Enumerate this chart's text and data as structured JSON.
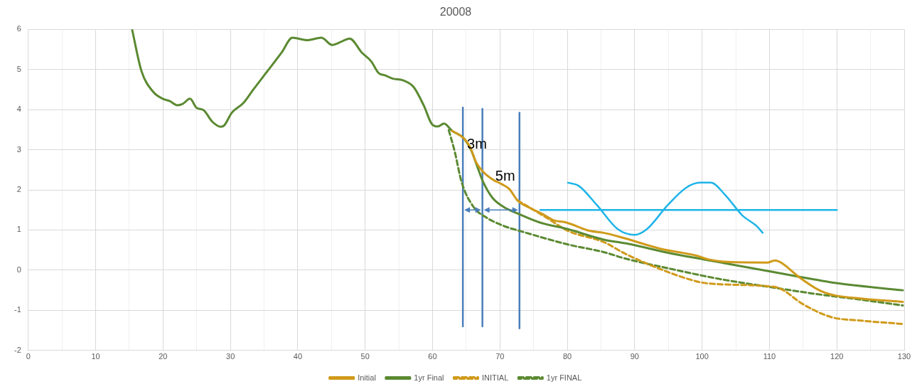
{
  "chart_data": {
    "type": "line",
    "title": "20008",
    "xlim": [
      0,
      130
    ],
    "ylim": [
      -2,
      6
    ],
    "xticks": [
      0,
      {
        "value": 5,
        "label": null
      },
      10,
      {
        "value": 15,
        "label": null
      },
      20,
      {
        "value": 25,
        "label": null
      },
      30,
      {
        "value": 35,
        "label": null
      },
      40,
      {
        "value": 45,
        "label": null
      },
      50,
      {
        "value": 55,
        "label": null
      },
      60,
      {
        "value": 65,
        "label": null
      },
      70,
      {
        "value": 75,
        "label": null
      },
      80,
      {
        "value": 85,
        "label": null
      },
      90,
      {
        "value": 95,
        "label": null
      },
      100,
      {
        "value": 105,
        "label": null
      },
      110,
      {
        "value": 115,
        "label": null
      },
      120,
      {
        "value": 125,
        "label": null
      },
      130
    ],
    "yticks": [
      -2,
      -1,
      0,
      1,
      2,
      3,
      4,
      5,
      6
    ],
    "grid": true,
    "legend": "bottom",
    "marker": "none",
    "annotations": [
      "3m",
      "5m"
    ],
    "series": [
      {
        "name": "Initial",
        "color": "#d09a1a",
        "line_style": "solid",
        "x": [
          62.9,
          64.6,
          65.6,
          66.4,
          67.5,
          68.9,
          70.3,
          71.4,
          72.6,
          74.2,
          76.3,
          78,
          79.8,
          83.3,
          85.4,
          88.6,
          93.9,
          99.2,
          100.9,
          104.4,
          109.7,
          110.8,
          111.8,
          114.3,
          117.4,
          119.5,
          123.8,
          129.8
        ],
        "values": [
          3.47,
          3.29,
          3.06,
          2.71,
          2.45,
          2.26,
          2.14,
          2.02,
          1.74,
          1.57,
          1.4,
          1.24,
          1.19,
          0.98,
          0.93,
          0.79,
          0.53,
          0.36,
          0.27,
          0.2,
          0.19,
          0.24,
          0.18,
          -0.16,
          -0.5,
          -0.62,
          -0.71,
          -0.79
        ]
      },
      {
        "name": "1yr Final",
        "color": "#5b8a32",
        "line_style": "solid",
        "x": [
          15.4,
          16.8,
          18.55,
          19.96,
          21,
          22.1,
          22.9,
          24,
          25,
          26,
          27.3,
          28.6,
          29.1,
          30.2,
          31.9,
          33.4,
          35.5,
          37.6,
          39.2,
          41.4,
          43.5,
          45.1,
          46.7,
          47.7,
          49.5,
          50.9,
          52,
          53,
          54.1,
          55.6,
          57.2,
          58.7,
          59.9,
          60.8,
          61.7,
          62.9,
          64.6,
          65.7,
          66.6,
          67.5,
          68.9,
          70.6,
          72.8,
          75.9,
          80.1,
          85.4,
          88.6,
          95.6,
          100.2,
          109.7,
          114.3,
          120.3,
          129.8
        ],
        "values": [
          6,
          4.96,
          4.44,
          4.27,
          4.21,
          4.11,
          4.14,
          4.27,
          4.04,
          3.99,
          3.7,
          3.57,
          3.61,
          3.92,
          4.16,
          4.5,
          4.96,
          5.42,
          5.79,
          5.73,
          5.79,
          5.61,
          5.71,
          5.77,
          5.42,
          5.2,
          4.91,
          4.85,
          4.77,
          4.73,
          4.56,
          4.1,
          3.64,
          3.58,
          3.65,
          3.47,
          3.29,
          3,
          2.6,
          2.2,
          1.8,
          1.57,
          1.4,
          1.19,
          1.02,
          0.76,
          0.67,
          0.41,
          0.27,
          -0.02,
          -0.16,
          -0.33,
          -0.5
        ]
      },
      {
        "name": "INITIAL",
        "color": "#d09a1a",
        "line_style": "dashed",
        "x": [
          72.6,
          76.7,
          80.1,
          85.4,
          88.6,
          93.9,
          99.2,
          100.9,
          109.7,
          111.5,
          115,
          119.2,
          123.8,
          129.8
        ],
        "values": [
          1.74,
          1.33,
          0.98,
          0.7,
          0.41,
          0.02,
          -0.28,
          -0.33,
          -0.4,
          -0.45,
          -0.85,
          -1.17,
          -1.26,
          -1.34
        ]
      },
      {
        "name": "1yr FINAL",
        "color": "#5b8a32",
        "line_style": "dashed",
        "x": [
          62.4,
          63.3,
          64.3,
          66.1,
          67.8,
          70.6,
          73.1,
          80.1,
          85.4,
          88.6,
          95.7,
          102.6,
          109.7,
          116.8,
          123.8,
          129.8
        ],
        "values": [
          3.49,
          2.95,
          2.2,
          1.57,
          1.33,
          1.1,
          0.97,
          0.64,
          0.45,
          0.29,
          0.02,
          -0.22,
          -0.41,
          -0.59,
          -0.74,
          -0.88
        ]
      },
      {
        "color": "#1eb4e8",
        "line_style": "solid",
        "x": [
          80.1,
          81.7,
          84.4,
          87.5,
          90,
          91.8,
          94.9,
          97.6,
          99.7,
          101.3,
          103.4,
          106,
          108.1,
          109
        ],
        "values": [
          2.18,
          2.1,
          1.62,
          1.02,
          0.88,
          1.02,
          1.62,
          2.05,
          2.18,
          2.18,
          1.88,
          1.36,
          1.1,
          0.93
        ]
      },
      {
        "color": "#1eb4e8",
        "line_style": "solid",
        "x": [
          76,
          120
        ],
        "values": [
          1.5,
          1.5
        ]
      },
      {
        "color": "#4a7ebb",
        "line_style": "solid",
        "x": [
          64.5,
          64.5
        ],
        "values": [
          4.05,
          -1.4
        ]
      },
      {
        "color": "#4a7ebb",
        "line_style": "solid",
        "x": [
          67.4,
          67.4
        ],
        "values": [
          4.02,
          -1.4
        ]
      },
      {
        "color": "#4a7ebb",
        "line_style": "solid",
        "x": [
          72.9,
          72.9
        ],
        "values": [
          3.92,
          -1.45
        ]
      }
    ]
  }
}
